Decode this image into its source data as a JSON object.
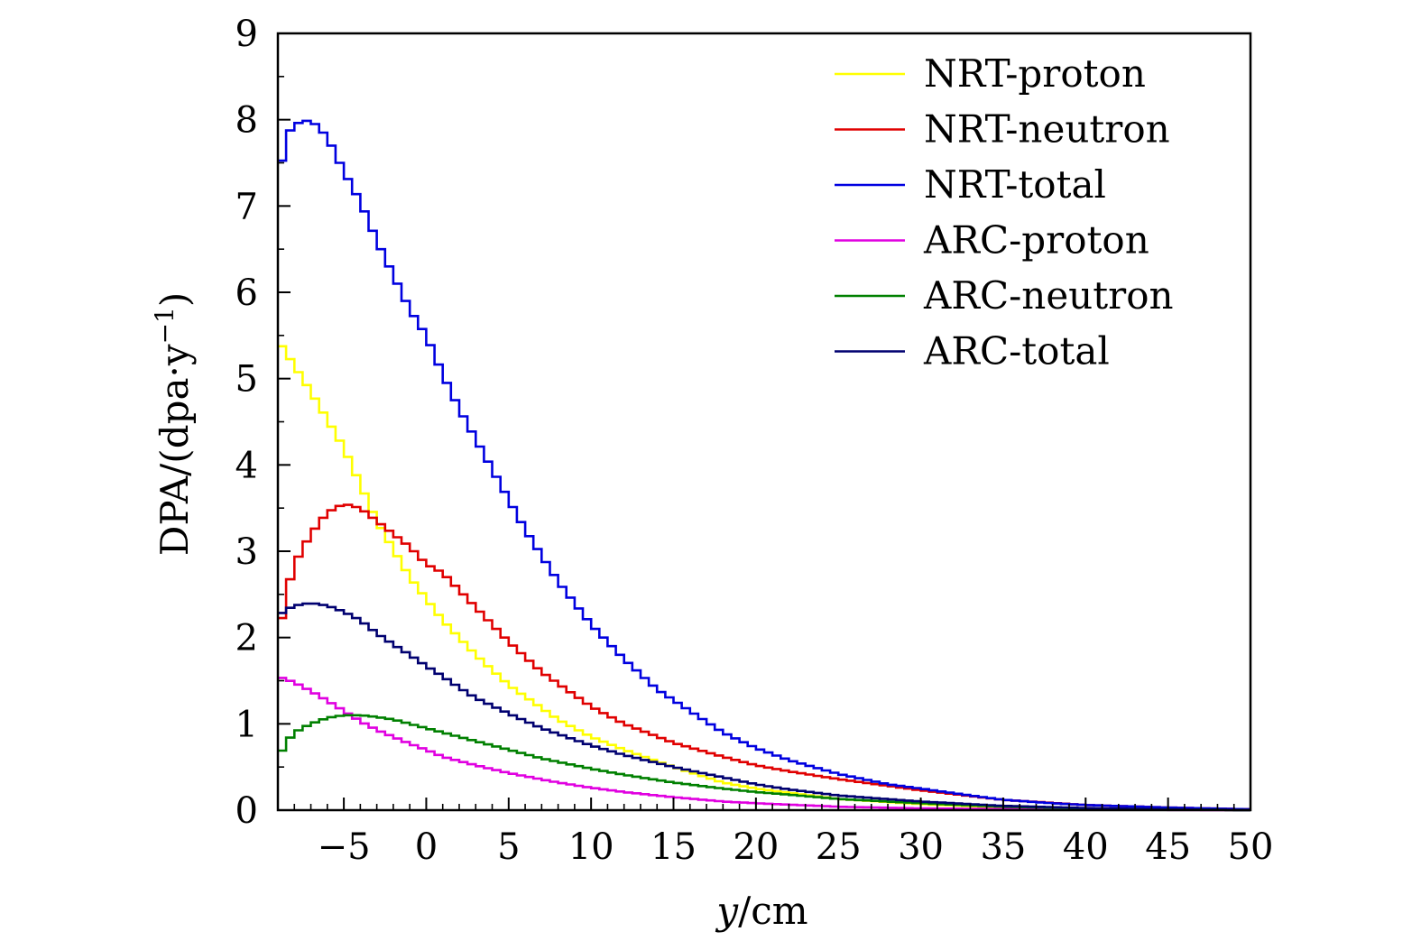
{
  "chart_data": {
    "type": "line",
    "style": "step",
    "xlabel_var": "y",
    "xlabel_unit": "/cm",
    "ylabel_main": "DPA/(dpa·y",
    "ylabel_sup": "−1",
    "ylabel_close": ")",
    "xlim": [
      -9,
      50
    ],
    "ylim": [
      0,
      9
    ],
    "xticks": [
      -5,
      0,
      5,
      10,
      15,
      20,
      25,
      30,
      35,
      40,
      45,
      50
    ],
    "xtick_labels": [
      "−5",
      "0",
      "5",
      "10",
      "15",
      "20",
      "25",
      "30",
      "35",
      "40",
      "45",
      "50"
    ],
    "yticks": [
      0,
      1,
      2,
      3,
      4,
      5,
      6,
      7,
      8,
      9
    ],
    "ytick_labels": [
      "0",
      "1",
      "2",
      "3",
      "4",
      "5",
      "6",
      "7",
      "8",
      "9"
    ],
    "legend_position": "top-right",
    "series": [
      {
        "name": "NRT-proton",
        "color": "#ffff00",
        "points": [
          [
            -9,
            5.45
          ],
          [
            -7,
            4.85
          ],
          [
            -5,
            4.2
          ],
          [
            -3,
            3.35
          ],
          [
            -1,
            2.7
          ],
          [
            1,
            2.2
          ],
          [
            3,
            1.8
          ],
          [
            5,
            1.45
          ],
          [
            8,
            1.05
          ],
          [
            10,
            0.85
          ],
          [
            12,
            0.7
          ],
          [
            15,
            0.5
          ],
          [
            18,
            0.32
          ],
          [
            20,
            0.25
          ],
          [
            25,
            0.13
          ],
          [
            30,
            0.07
          ],
          [
            35,
            0.03
          ],
          [
            40,
            0.015
          ],
          [
            50,
            0.0
          ]
        ]
      },
      {
        "name": "NRT-neutron",
        "color": "#e00000",
        "points": [
          [
            -9,
            1.95
          ],
          [
            -8.5,
            2.5
          ],
          [
            -8,
            2.85
          ],
          [
            -7,
            3.2
          ],
          [
            -6,
            3.45
          ],
          [
            -5,
            3.55
          ],
          [
            -4,
            3.5
          ],
          [
            -3,
            3.35
          ],
          [
            -2,
            3.2
          ],
          [
            -1,
            3.05
          ],
          [
            0,
            2.85
          ],
          [
            1,
            2.75
          ],
          [
            2,
            2.55
          ],
          [
            3,
            2.35
          ],
          [
            4,
            2.15
          ],
          [
            5,
            1.95
          ],
          [
            7,
            1.6
          ],
          [
            10,
            1.2
          ],
          [
            12,
            1.0
          ],
          [
            15,
            0.78
          ],
          [
            18,
            0.62
          ],
          [
            20,
            0.52
          ],
          [
            22,
            0.45
          ],
          [
            25,
            0.36
          ],
          [
            30,
            0.23
          ],
          [
            35,
            0.12
          ],
          [
            40,
            0.06
          ],
          [
            45,
            0.03
          ],
          [
            50,
            0.01
          ]
        ]
      },
      {
        "name": "NRT-total",
        "color": "#0000e0",
        "points": [
          [
            -9,
            7.25
          ],
          [
            -8.5,
            7.8
          ],
          [
            -8,
            7.95
          ],
          [
            -7,
            8.0
          ],
          [
            -6,
            7.8
          ],
          [
            -5,
            7.4
          ],
          [
            -4,
            7.05
          ],
          [
            -3,
            6.6
          ],
          [
            -2,
            6.2
          ],
          [
            -1,
            5.8
          ],
          [
            0,
            5.5
          ],
          [
            1,
            5.05
          ],
          [
            2,
            4.65
          ],
          [
            3,
            4.3
          ],
          [
            4,
            3.95
          ],
          [
            5,
            3.6
          ],
          [
            6,
            3.25
          ],
          [
            7,
            2.95
          ],
          [
            8,
            2.65
          ],
          [
            9,
            2.4
          ],
          [
            10,
            2.15
          ],
          [
            12,
            1.75
          ],
          [
            14,
            1.4
          ],
          [
            16,
            1.15
          ],
          [
            18,
            0.9
          ],
          [
            20,
            0.72
          ],
          [
            22,
            0.58
          ],
          [
            25,
            0.42
          ],
          [
            28,
            0.3
          ],
          [
            30,
            0.25
          ],
          [
            33,
            0.17
          ],
          [
            35,
            0.12
          ],
          [
            38,
            0.08
          ],
          [
            40,
            0.06
          ],
          [
            45,
            0.03
          ],
          [
            50,
            0.01
          ]
        ]
      },
      {
        "name": "ARC-proton",
        "color": "#e000e0",
        "points": [
          [
            -9,
            1.55
          ],
          [
            -8,
            1.48
          ],
          [
            -7,
            1.38
          ],
          [
            -6,
            1.27
          ],
          [
            -5,
            1.15
          ],
          [
            -4,
            1.03
          ],
          [
            -3,
            0.93
          ],
          [
            -2,
            0.85
          ],
          [
            -1,
            0.77
          ],
          [
            0,
            0.7
          ],
          [
            1,
            0.62
          ],
          [
            3,
            0.52
          ],
          [
            5,
            0.43
          ],
          [
            8,
            0.32
          ],
          [
            10,
            0.26
          ],
          [
            12,
            0.21
          ],
          [
            15,
            0.15
          ],
          [
            18,
            0.1
          ],
          [
            20,
            0.08
          ],
          [
            25,
            0.04
          ],
          [
            30,
            0.02
          ],
          [
            40,
            0.005
          ],
          [
            50,
            0.0
          ]
        ]
      },
      {
        "name": "ARC-neutron",
        "color": "#008000",
        "points": [
          [
            -9,
            0.6
          ],
          [
            -8.5,
            0.78
          ],
          [
            -8,
            0.9
          ],
          [
            -7,
            1.0
          ],
          [
            -6,
            1.07
          ],
          [
            -5,
            1.1
          ],
          [
            -4,
            1.1
          ],
          [
            -3,
            1.08
          ],
          [
            -2,
            1.05
          ],
          [
            -1,
            1.0
          ],
          [
            0,
            0.95
          ],
          [
            1,
            0.9
          ],
          [
            2,
            0.85
          ],
          [
            3,
            0.8
          ],
          [
            5,
            0.7
          ],
          [
            7,
            0.6
          ],
          [
            10,
            0.48
          ],
          [
            12,
            0.41
          ],
          [
            15,
            0.32
          ],
          [
            18,
            0.25
          ],
          [
            20,
            0.21
          ],
          [
            22,
            0.18
          ],
          [
            25,
            0.13
          ],
          [
            30,
            0.08
          ],
          [
            35,
            0.04
          ],
          [
            40,
            0.02
          ],
          [
            45,
            0.01
          ],
          [
            50,
            0.0
          ]
        ]
      },
      {
        "name": "ARC-total",
        "color": "#000070",
        "points": [
          [
            -9,
            2.25
          ],
          [
            -8.5,
            2.32
          ],
          [
            -8,
            2.37
          ],
          [
            -7,
            2.4
          ],
          [
            -6,
            2.37
          ],
          [
            -5,
            2.3
          ],
          [
            -4,
            2.2
          ],
          [
            -3,
            2.05
          ],
          [
            -2,
            1.92
          ],
          [
            -1,
            1.8
          ],
          [
            0,
            1.67
          ],
          [
            1,
            1.55
          ],
          [
            2,
            1.42
          ],
          [
            3,
            1.3
          ],
          [
            5,
            1.12
          ],
          [
            7,
            0.95
          ],
          [
            10,
            0.75
          ],
          [
            12,
            0.64
          ],
          [
            15,
            0.5
          ],
          [
            18,
            0.38
          ],
          [
            20,
            0.3
          ],
          [
            22,
            0.24
          ],
          [
            25,
            0.17
          ],
          [
            30,
            0.1
          ],
          [
            35,
            0.05
          ],
          [
            40,
            0.025
          ],
          [
            45,
            0.01
          ],
          [
            50,
            0.0
          ]
        ]
      }
    ]
  }
}
